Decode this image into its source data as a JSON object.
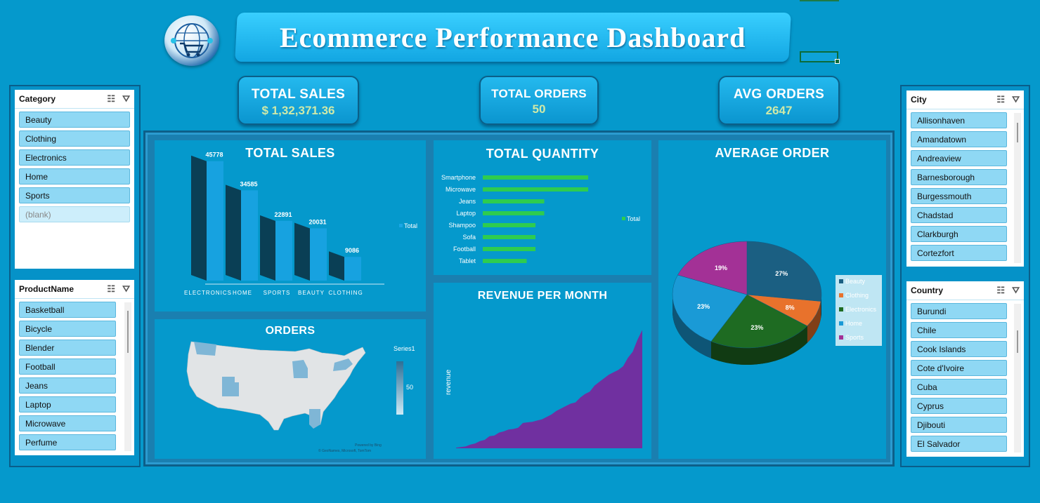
{
  "title": "Ecommerce Performance Dashboard",
  "kpis": {
    "total_sales": {
      "label": "TOTAL SALES",
      "value": "$ 1,32,371.36"
    },
    "total_orders": {
      "label": "TOTAL ORDERS",
      "value": "50"
    },
    "avg_orders": {
      "label": "AVG ORDERS",
      "value": "2647"
    }
  },
  "slicers": {
    "category": {
      "title": "Category",
      "items": [
        "Beauty",
        "Clothing",
        "Electronics",
        "Home",
        "Sports",
        "(blank)"
      ]
    },
    "product": {
      "title": "ProductName",
      "items": [
        "Basketball",
        "Bicycle",
        "Blender",
        "Football",
        "Jeans",
        "Laptop",
        "Microwave",
        "Perfume"
      ]
    },
    "city": {
      "title": "City",
      "items": [
        "Allisonhaven",
        "Amandatown",
        "Andreaview",
        "Barnesborough",
        "Burgessmouth",
        "Chadstad",
        "Clarkburgh",
        "Cortezfort"
      ]
    },
    "country": {
      "title": "Country",
      "items": [
        "Burundi",
        "Chile",
        "Cook Islands",
        "Cote d'Ivoire",
        "Cuba",
        "Cyprus",
        "Djibouti",
        "El Salvador"
      ]
    }
  },
  "panels": {
    "total_sales": "TOTAL SALES",
    "total_quantity": "TOTAL QUANTITY",
    "average_order": "AVERAGE ORDER",
    "orders": "ORDERS",
    "revenue": "REVENUE PER MONTH"
  },
  "map": {
    "legend_title": "Series1",
    "legend_value": "50",
    "credit1": "Powered by Bing",
    "credit2": "© GeoNames, Microsoft, TomTom"
  },
  "colors": {
    "accent": "#0599cc",
    "bar_dark": "#0a3f55",
    "bar_light": "#17a2e0",
    "hbar": "#2ecc4f",
    "area": "#7030a0"
  },
  "chart_data": [
    {
      "type": "bar",
      "title": "TOTAL SALES",
      "categories": [
        "ELECTRONICS",
        "HOME",
        "SPORTS",
        "BEAUTY",
        "CLOTHING"
      ],
      "series": [
        {
          "name": "Total",
          "values": [
            45778,
            34585,
            22891,
            20031,
            9086
          ]
        }
      ],
      "ylim": [
        0,
        50000
      ]
    },
    {
      "type": "bar",
      "title": "TOTAL QUANTITY",
      "orientation": "horizontal",
      "categories": [
        "Smartphone",
        "Microwave",
        "Jeans",
        "Laptop",
        "Shampoo",
        "Sofa",
        "Football",
        "Tablet"
      ],
      "series": [
        {
          "name": "Total",
          "values": [
            12,
            12,
            7,
            7,
            6,
            6,
            6,
            5
          ]
        }
      ]
    },
    {
      "type": "pie",
      "title": "AVERAGE ORDER",
      "categories": [
        "Beauty",
        "Clothing",
        "Electronics",
        "Home",
        "Sports"
      ],
      "values": [
        27,
        8,
        23,
        23,
        19
      ],
      "colors": [
        "#1b5f82",
        "#e8722c",
        "#1e6b22",
        "#1a9ad6",
        "#a33196"
      ],
      "legend": "right"
    },
    {
      "type": "area",
      "title": "REVENUE PER MONTH",
      "ylabel": "revenue",
      "values": [
        0.5,
        1,
        1.5,
        3,
        4,
        6,
        7,
        10,
        10.5,
        13,
        14,
        15.5,
        16,
        17,
        21,
        21.5,
        22,
        23,
        24,
        26,
        28,
        31,
        33,
        35,
        37,
        38,
        42,
        45,
        47,
        52,
        55,
        58,
        61,
        63,
        65,
        68,
        75,
        80,
        90,
        98
      ]
    }
  ]
}
